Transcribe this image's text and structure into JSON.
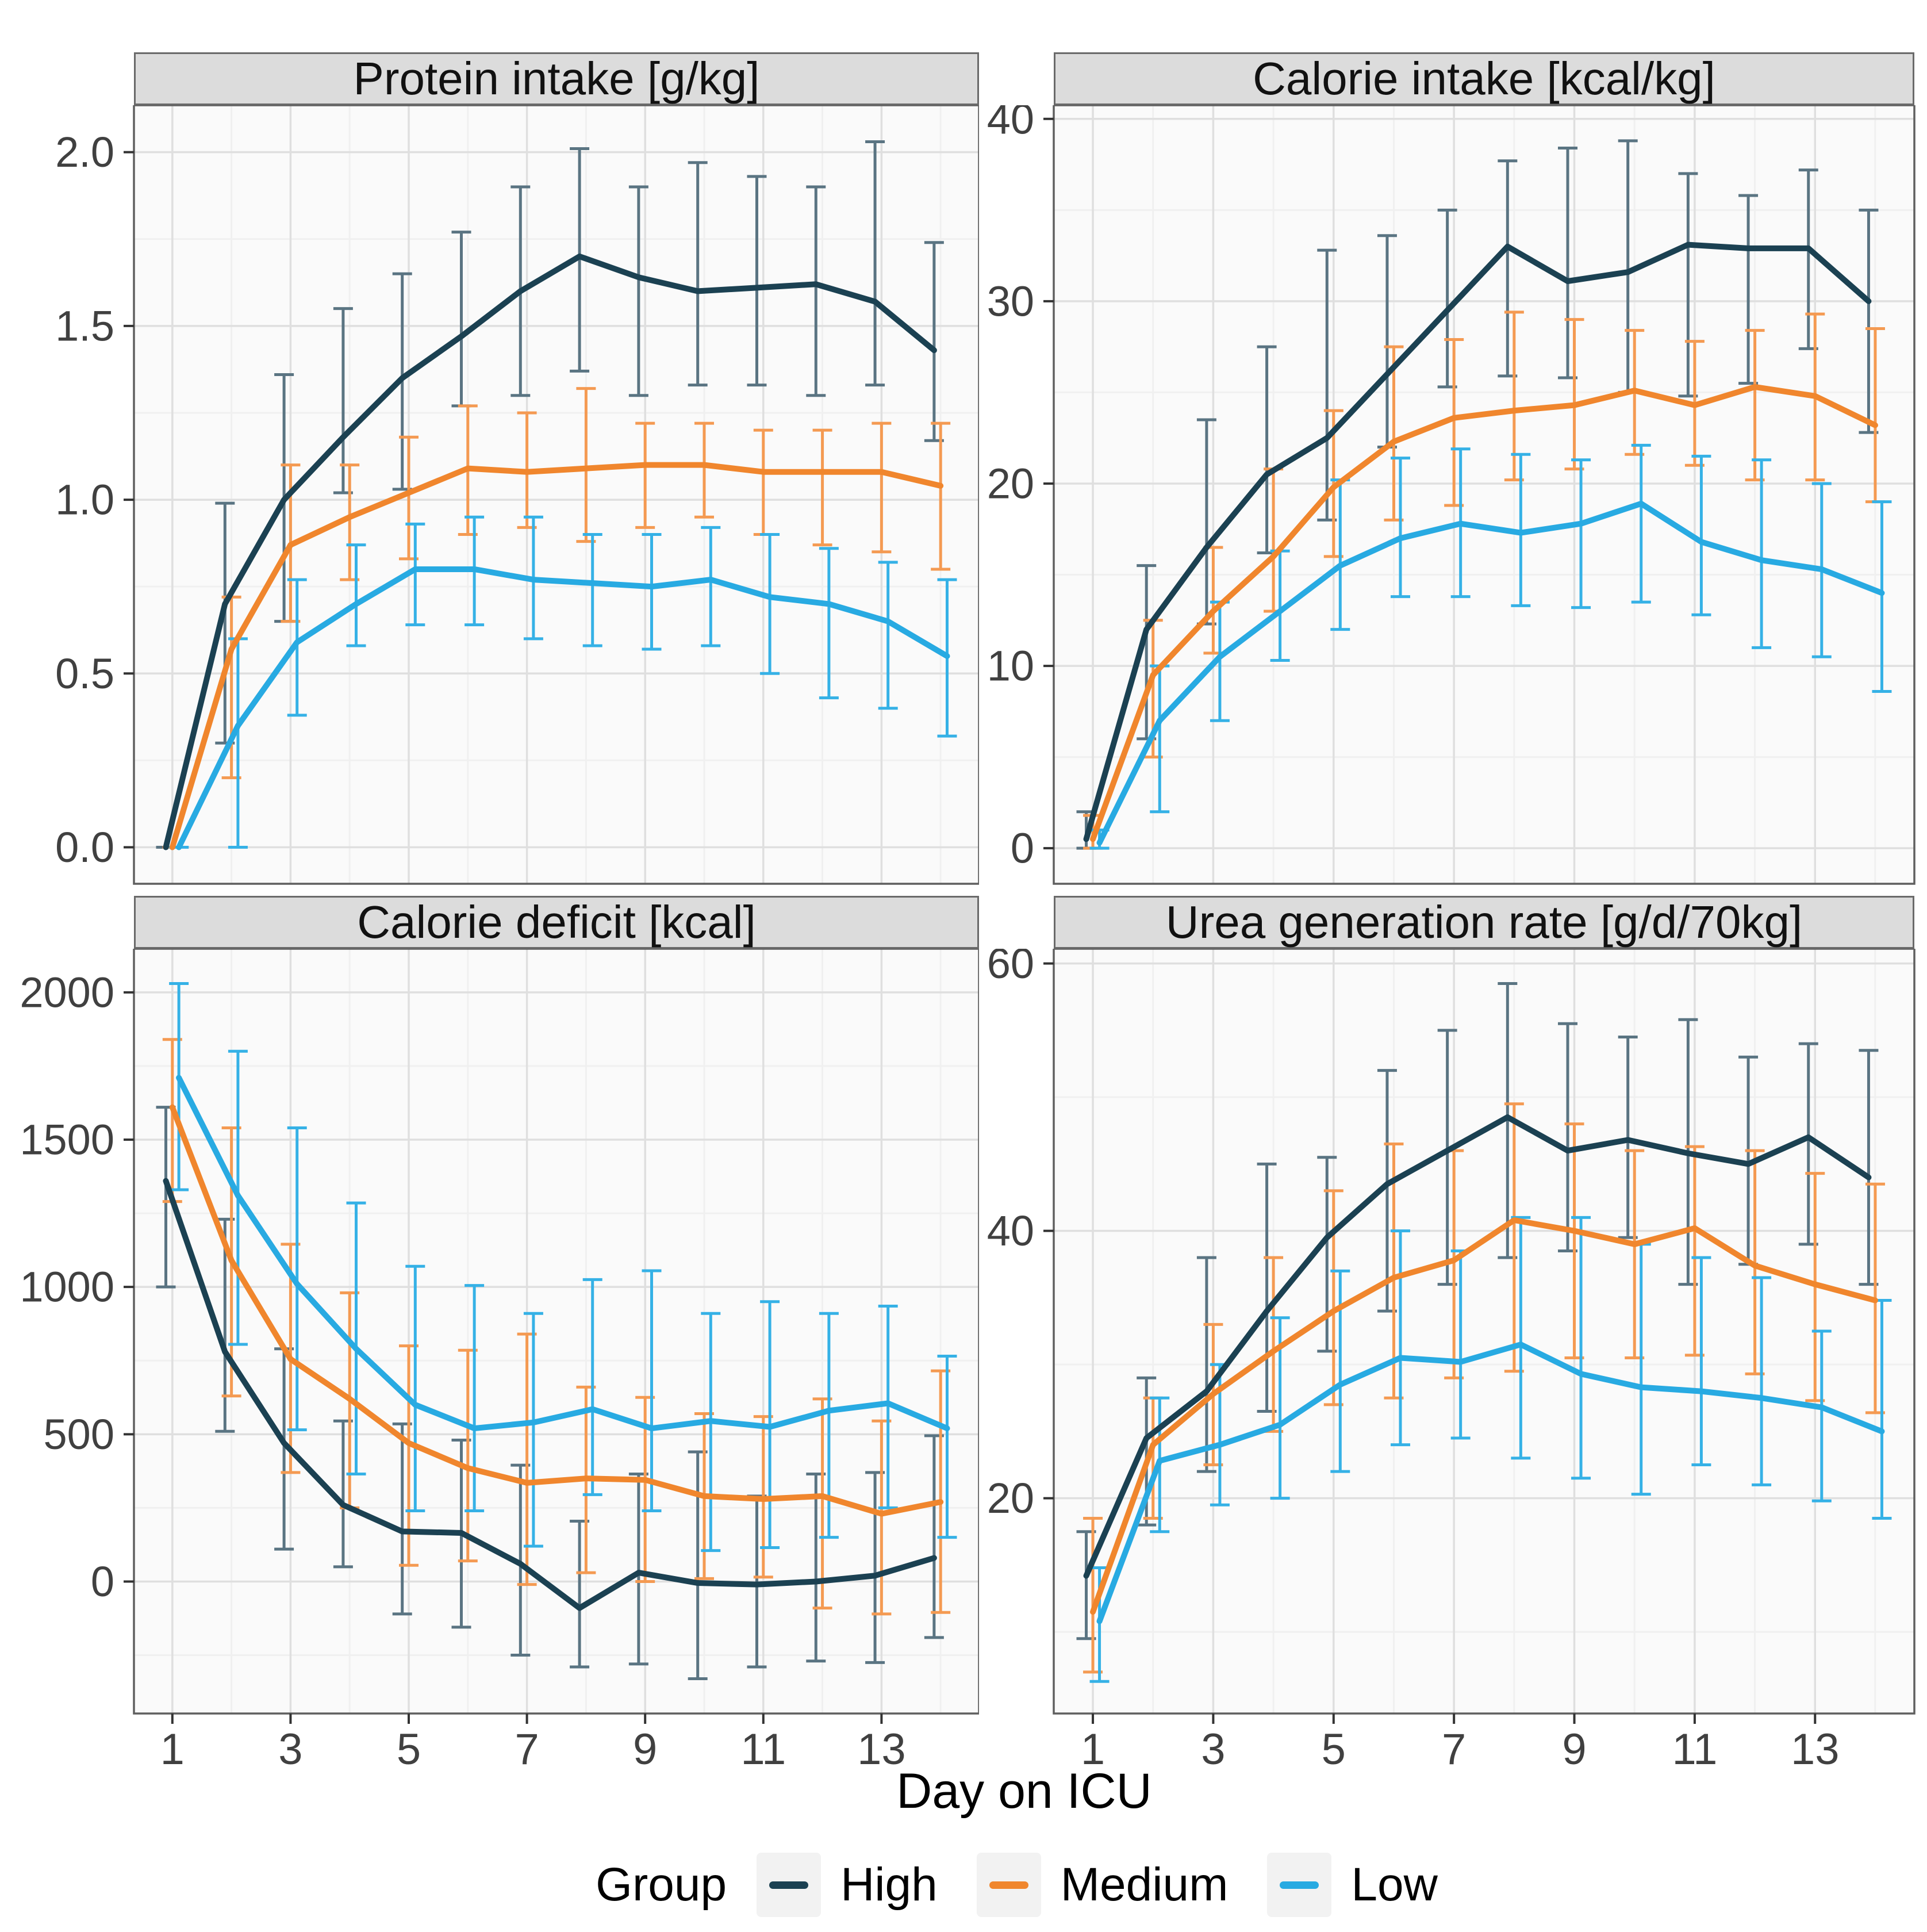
{
  "figure": {
    "xlabel": "Day on ICU",
    "legend": {
      "title": "Group",
      "items": [
        {
          "label": "High",
          "color": "#1b4152"
        },
        {
          "label": "Medium",
          "color": "#f0862d"
        },
        {
          "label": "Low",
          "color": "#28aae2"
        }
      ]
    },
    "colors": {
      "high_line": "#1b4152",
      "high_error": "#5a7482",
      "medium_line": "#f0862d",
      "medium_error": "#f49a52",
      "low_line": "#28aae2",
      "low_error": "#35b1e6",
      "panel_background": "#fafafa",
      "grid_major": "#dfdfdf",
      "grid_minor": "#f0f0f0",
      "panel_border": "#5f5f5f",
      "strip_background": "#dcdcdc",
      "tick_text": "#404040"
    }
  },
  "chart_data": [
    {
      "type": "line",
      "title": "Protein intake [g/kg]",
      "x": [
        1,
        2,
        3,
        4,
        5,
        6,
        7,
        8,
        9,
        10,
        11,
        12,
        13,
        14
      ],
      "xticks": [
        1,
        3,
        5,
        7,
        9,
        11,
        13
      ],
      "xtick_labels": [
        "1",
        "3",
        "5",
        "7",
        "9",
        "11",
        "13"
      ],
      "show_x_axis": false,
      "ylim": [
        -0.105,
        2.135
      ],
      "yticks": [
        0.0,
        0.5,
        1.0,
        1.5,
        2.0
      ],
      "ytick_labels": [
        "0.0",
        "0.5",
        "1.0",
        "1.5",
        "2.0"
      ],
      "grid": true,
      "legend_position": "bottom",
      "series": [
        {
          "name": "High",
          "dodge": -0.11,
          "values": [
            0,
            0.7,
            1.0,
            1.18,
            1.35,
            1.47,
            1.6,
            1.7,
            1.64,
            1.6,
            1.61,
            1.62,
            1.57,
            1.43
          ],
          "err_lo": [
            0,
            0.3,
            0.65,
            1.02,
            1.03,
            1.27,
            1.3,
            1.37,
            1.3,
            1.33,
            1.33,
            1.3,
            1.33,
            1.17
          ],
          "err_hi": [
            0,
            0.99,
            1.36,
            1.55,
            1.65,
            1.77,
            1.9,
            2.01,
            1.9,
            1.97,
            1.93,
            1.9,
            2.03,
            1.74
          ]
        },
        {
          "name": "Medium",
          "dodge": 0,
          "values": [
            0,
            0.57,
            0.87,
            0.95,
            1.02,
            1.09,
            1.08,
            1.09,
            1.1,
            1.1,
            1.08,
            1.08,
            1.08,
            1.04
          ],
          "err_lo": [
            0,
            0.2,
            0.65,
            0.77,
            0.83,
            0.9,
            0.92,
            0.88,
            0.92,
            0.95,
            0.9,
            0.87,
            0.85,
            0.8
          ],
          "err_hi": [
            0,
            0.72,
            1.1,
            1.1,
            1.18,
            1.27,
            1.25,
            1.32,
            1.22,
            1.22,
            1.2,
            1.2,
            1.22,
            1.22
          ]
        },
        {
          "name": "Low",
          "dodge": 0.11,
          "values": [
            0,
            0.35,
            0.59,
            0.7,
            0.8,
            0.8,
            0.77,
            0.76,
            0.75,
            0.77,
            0.72,
            0.7,
            0.65,
            0.55
          ],
          "err_lo": [
            0,
            0.0,
            0.38,
            0.58,
            0.64,
            0.64,
            0.6,
            0.58,
            0.57,
            0.58,
            0.5,
            0.43,
            0.4,
            0.32
          ],
          "err_hi": [
            0,
            0.6,
            0.77,
            0.87,
            0.93,
            0.95,
            0.95,
            0.9,
            0.9,
            0.92,
            0.9,
            0.86,
            0.82,
            0.77
          ]
        }
      ]
    },
    {
      "type": "line",
      "title": "Calorie intake [kcal/kg]",
      "x": [
        1,
        2,
        3,
        4,
        5,
        6,
        7,
        8,
        9,
        10,
        11,
        12,
        13,
        14
      ],
      "xticks": [
        1,
        3,
        5,
        7,
        9,
        11,
        13
      ],
      "xtick_labels": [
        "1",
        "3",
        "5",
        "7",
        "9",
        "11",
        "13"
      ],
      "show_x_axis": false,
      "ylim": [
        -1.95,
        40.75
      ],
      "yticks": [
        0,
        10,
        20,
        30,
        40
      ],
      "ytick_labels": [
        "0",
        "10",
        "20",
        "30",
        "40"
      ],
      "grid": true,
      "legend_position": "bottom",
      "series": [
        {
          "name": "High",
          "dodge": -0.11,
          "values": [
            0.5,
            12,
            16.5,
            20.5,
            22.5,
            26,
            29.5,
            33,
            31.1,
            31.6,
            33.1,
            32.9,
            32.9,
            30
          ],
          "err_lo": [
            0,
            6,
            12.3,
            16.2,
            18,
            22,
            25.3,
            25.9,
            25.8,
            25,
            24.8,
            25.5,
            27.4,
            22.8
          ],
          "err_hi": [
            2,
            15.5,
            23.5,
            27.5,
            32.8,
            33.6,
            35,
            37.7,
            38.4,
            38.8,
            37,
            35.8,
            37.2,
            35
          ]
        },
        {
          "name": "Medium",
          "dodge": 0,
          "values": [
            0.5,
            9.5,
            13,
            16,
            19.8,
            22.3,
            23.6,
            24,
            24.3,
            25.1,
            24.3,
            25.3,
            24.8,
            23.2
          ],
          "err_lo": [
            0,
            5,
            10.7,
            13,
            16,
            18,
            18.8,
            20.2,
            20.8,
            21.6,
            21,
            20.2,
            20.2,
            19
          ],
          "err_hi": [
            1.8,
            12.5,
            16.5,
            20.8,
            24,
            27.5,
            27.9,
            29.4,
            29,
            28.4,
            27.8,
            28.4,
            29.3,
            28.5
          ]
        },
        {
          "name": "Low",
          "dodge": 0.11,
          "values": [
            0.3,
            7,
            10.5,
            13,
            15.5,
            17,
            17.8,
            17.3,
            17.8,
            18.9,
            16.8,
            15.8,
            15.3,
            14
          ],
          "err_lo": [
            0,
            2,
            7,
            10.3,
            12,
            13.8,
            13.8,
            13.3,
            13.2,
            13.5,
            12.8,
            11,
            10.5,
            8.6
          ],
          "err_hi": [
            1,
            10,
            13.5,
            16.3,
            20.2,
            21.4,
            21.9,
            21.6,
            21.3,
            22.1,
            21.5,
            21.3,
            20,
            19
          ]
        }
      ]
    },
    {
      "type": "line",
      "title": "Calorie deficit [kcal]",
      "x": [
        1,
        2,
        3,
        4,
        5,
        6,
        7,
        8,
        9,
        10,
        11,
        12,
        13,
        14
      ],
      "xticks": [
        1,
        3,
        5,
        7,
        9,
        11,
        13
      ],
      "xtick_labels": [
        "1",
        "3",
        "5",
        "7",
        "9",
        "11",
        "13"
      ],
      "show_x_axis": true,
      "ylim": [
        -448,
        2148
      ],
      "yticks": [
        0,
        500,
        1000,
        1500,
        2000
      ],
      "ytick_labels": [
        "0",
        "500",
        "1000",
        "1500",
        "2000"
      ],
      "grid": true,
      "legend_position": "bottom",
      "series": [
        {
          "name": "High",
          "dodge": -0.11,
          "values": [
            1360,
            780,
            470,
            260,
            170,
            165,
            60,
            -90,
            30,
            -5,
            -10,
            0,
            20,
            80
          ],
          "err_lo": [
            1000,
            510,
            110,
            50,
            -110,
            -155,
            -250,
            -290,
            -280,
            -330,
            -290,
            -270,
            -275,
            -190
          ],
          "err_hi": [
            1610,
            1230,
            790,
            545,
            535,
            480,
            395,
            205,
            365,
            440,
            290,
            365,
            370,
            495
          ]
        },
        {
          "name": "Medium",
          "dodge": 0,
          "values": [
            1610,
            1090,
            755,
            620,
            470,
            385,
            335,
            350,
            345,
            290,
            280,
            290,
            230,
            270
          ],
          "err_lo": [
            1290,
            630,
            370,
            250,
            55,
            70,
            -10,
            30,
            0,
            10,
            15,
            -90,
            -110,
            -105
          ],
          "err_hi": [
            1840,
            1540,
            1145,
            980,
            800,
            785,
            840,
            660,
            625,
            570,
            560,
            620,
            545,
            715
          ]
        },
        {
          "name": "Low",
          "dodge": 0.11,
          "values": [
            1710,
            1310,
            1010,
            790,
            600,
            520,
            540,
            585,
            520,
            545,
            525,
            580,
            605,
            520
          ],
          "err_lo": [
            1330,
            805,
            515,
            365,
            240,
            240,
            120,
            295,
            240,
            105,
            115,
            150,
            250,
            150
          ],
          "err_hi": [
            2030,
            1800,
            1540,
            1285,
            1070,
            1005,
            910,
            1025,
            1055,
            910,
            950,
            910,
            935,
            765
          ]
        }
      ]
    },
    {
      "type": "line",
      "title": "Urea generation rate [g/d/70kg]",
      "x": [
        1,
        2,
        3,
        4,
        5,
        6,
        7,
        8,
        9,
        10,
        11,
        12,
        13,
        14
      ],
      "xticks": [
        1,
        3,
        5,
        7,
        9,
        11,
        13
      ],
      "xtick_labels": [
        "1",
        "3",
        "5",
        "7",
        "9",
        "11",
        "13"
      ],
      "show_x_axis": true,
      "ylim": [
        3.9,
        61.1
      ],
      "yticks": [
        20,
        40,
        60
      ],
      "ytick_labels": [
        "20",
        "40",
        "60"
      ],
      "grid": true,
      "legend_position": "bottom",
      "series": [
        {
          "name": "High",
          "dodge": -0.11,
          "values": [
            14.2,
            24.5,
            28,
            34,
            39.5,
            43.5,
            46,
            48.5,
            46,
            46.8,
            45.8,
            45,
            47,
            44
          ],
          "err_lo": [
            9.5,
            18,
            22,
            26.5,
            31,
            34,
            36,
            38,
            38.5,
            39.5,
            36,
            37.5,
            39,
            36
          ],
          "err_hi": [
            17.5,
            29,
            38,
            45,
            45.5,
            52,
            55,
            58.5,
            55.5,
            54.5,
            55.8,
            53,
            54,
            53.5
          ]
        },
        {
          "name": "Medium",
          "dodge": 0,
          "values": [
            11.5,
            24,
            27.8,
            31,
            34,
            36.5,
            37.8,
            40.8,
            40,
            39,
            40.2,
            37.4,
            36,
            34.8
          ],
          "err_lo": [
            7,
            18.5,
            22.5,
            25,
            27,
            27.5,
            29,
            29.5,
            30.5,
            30.5,
            30.7,
            29.3,
            27.3,
            26.4
          ],
          "err_hi": [
            18.5,
            27.5,
            33,
            38,
            43,
            46.5,
            46,
            49.5,
            48,
            46,
            46.3,
            46,
            44.3,
            43.5
          ]
        },
        {
          "name": "Low",
          "dodge": 0.11,
          "values": [
            10.8,
            22.8,
            24,
            25.5,
            28.5,
            30.5,
            30.2,
            31.5,
            29.3,
            28.3,
            28,
            27.5,
            26.8,
            25
          ],
          "err_lo": [
            6.3,
            17.5,
            19.5,
            20,
            22,
            24,
            24.5,
            23,
            21.5,
            20.3,
            22.5,
            21,
            19.8,
            18.5
          ],
          "err_hi": [
            14.8,
            27.5,
            30,
            33.5,
            37,
            40,
            38.5,
            41,
            41,
            39,
            38,
            36.5,
            32.5,
            34.8
          ]
        }
      ]
    }
  ]
}
